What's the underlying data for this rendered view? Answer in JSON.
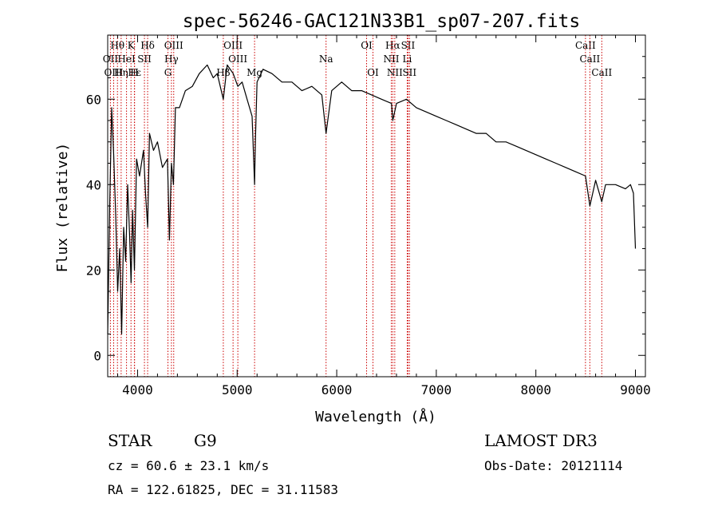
{
  "chart_data": {
    "type": "line",
    "title": "spec-56246-GAC121N33B1_sp07-207.fits",
    "xlabel": "Wavelength (Å)",
    "ylabel": "Flux (relative)",
    "xlim": [
      3700,
      9100
    ],
    "ylim": [
      -5,
      75
    ],
    "x_ticks": [
      4000,
      5000,
      6000,
      7000,
      8000,
      9000
    ],
    "y_ticks": [
      0,
      20,
      40,
      60
    ],
    "line_color": "#000000",
    "marker_color": "#cc0000",
    "series": [
      {
        "name": "spectrum",
        "x": [
          3700,
          3720,
          3740,
          3760,
          3780,
          3800,
          3820,
          3840,
          3860,
          3880,
          3900,
          3920,
          3935,
          3950,
          3968,
          3990,
          4020,
          4060,
          4080,
          4101,
          4120,
          4160,
          4200,
          4250,
          4300,
          4320,
          4340,
          4360,
          4380,
          4420,
          4480,
          4550,
          4620,
          4700,
          4760,
          4800,
          4861,
          4900,
          4960,
          5007,
          5050,
          5100,
          5150,
          5175,
          5183,
          5200,
          5260,
          5350,
          5450,
          5550,
          5650,
          5750,
          5850,
          5893,
          5950,
          6050,
          6150,
          6250,
          6350,
          6450,
          6550,
          6563,
          6600,
          6700,
          6800,
          6900,
          7000,
          7100,
          7200,
          7300,
          7400,
          7500,
          7600,
          7700,
          7800,
          7900,
          8000,
          8100,
          8200,
          8300,
          8400,
          8498,
          8542,
          8600,
          8662,
          8700,
          8800,
          8900,
          8950,
          8980,
          9000
        ],
        "y": [
          5,
          35,
          58,
          47,
          33,
          15,
          25,
          5,
          30,
          22,
          40,
          28,
          17,
          34,
          20,
          46,
          42,
          48,
          38,
          30,
          52,
          48,
          50,
          44,
          46,
          27,
          45,
          40,
          58,
          58,
          62,
          63,
          66,
          68,
          65,
          66,
          60,
          68,
          66,
          63,
          64,
          60,
          56,
          40,
          50,
          64,
          67,
          66,
          64,
          64,
          62,
          63,
          61,
          52,
          62,
          64,
          62,
          62,
          61,
          60,
          59,
          55,
          59,
          60,
          58,
          57,
          56,
          55,
          54,
          53,
          52,
          52,
          50,
          50,
          49,
          48,
          47,
          46,
          45,
          44,
          43,
          42,
          35,
          41,
          36,
          40,
          40,
          39,
          40,
          38,
          25
        ]
      }
    ],
    "lines": [
      {
        "name": "Hθ",
        "wave": 3798,
        "row": 0
      },
      {
        "name": "K",
        "wave": 3934,
        "row": 0
      },
      {
        "name": "Hδ",
        "wave": 4101,
        "row": 0
      },
      {
        "name": "OIII",
        "wave": 4363,
        "row": 0
      },
      {
        "name": "OIII",
        "wave": 4959,
        "row": 0
      },
      {
        "name": "OI",
        "wave": 6300,
        "row": 0
      },
      {
        "name": "Hα",
        "wave": 6563,
        "row": 0
      },
      {
        "name": "SII",
        "wave": 6716,
        "row": 0
      },
      {
        "name": "CaII",
        "wave": 8498,
        "row": 0
      },
      {
        "name": "OII",
        "wave": 3727,
        "row": 1
      },
      {
        "name": "HeI",
        "wave": 3889,
        "row": 1
      },
      {
        "name": "SII",
        "wave": 4069,
        "row": 1
      },
      {
        "name": "Hγ",
        "wave": 4340,
        "row": 1
      },
      {
        "name": "OIII",
        "wave": 5007,
        "row": 1
      },
      {
        "name": "Na",
        "wave": 5893,
        "row": 1
      },
      {
        "name": "NII",
        "wave": 6548,
        "row": 1
      },
      {
        "name": "Li",
        "wave": 6708,
        "row": 1
      },
      {
        "name": "CaII",
        "wave": 8542,
        "row": 1
      },
      {
        "name": "OIII",
        "wave": 3760,
        "row": 2
      },
      {
        "name": "Hε",
        "wave": 3970,
        "row": 2
      },
      {
        "name": "Hη",
        "wave": 3835,
        "row": 2
      },
      {
        "name": "H",
        "wave": 3968,
        "row": 2
      },
      {
        "name": "G",
        "wave": 4305,
        "row": 2
      },
      {
        "name": "Hβ",
        "wave": 4861,
        "row": 2
      },
      {
        "name": "Mg",
        "wave": 5175,
        "row": 2
      },
      {
        "name": "OI",
        "wave": 6364,
        "row": 2
      },
      {
        "name": "NII",
        "wave": 6583,
        "row": 2
      },
      {
        "name": "SII",
        "wave": 6731,
        "row": 2
      },
      {
        "name": "CaII",
        "wave": 8662,
        "row": 2
      }
    ]
  },
  "info": {
    "class": "STAR",
    "subclass": "G9",
    "survey": "LAMOST DR3",
    "cz": "cz = 60.6 ± 23.1 km/s",
    "obs_date": "Obs-Date: 20121114",
    "coords": "RA = 122.61825, DEC =  31.11583"
  }
}
